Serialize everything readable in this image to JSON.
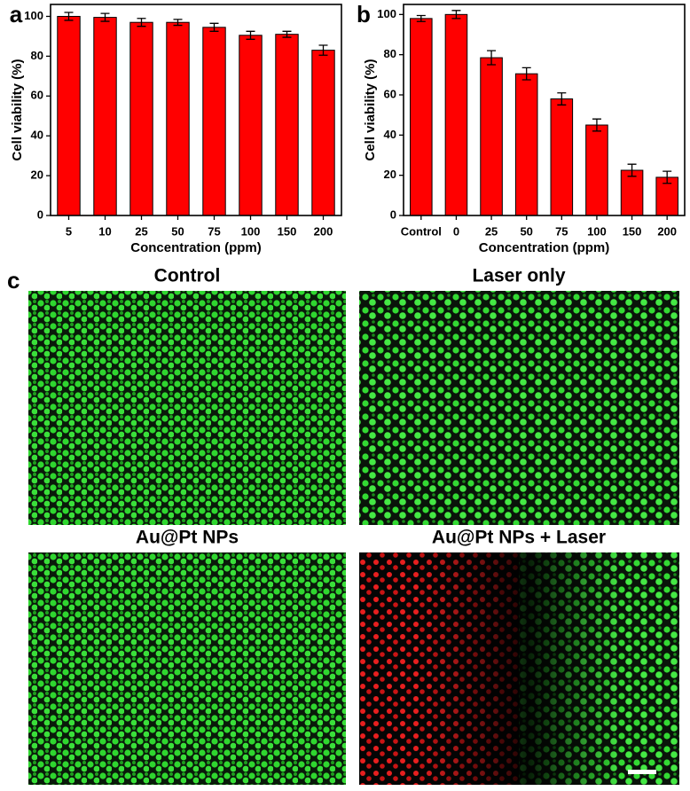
{
  "chart_data": [
    {
      "type": "bar",
      "panel_label": "a",
      "xlabel": "Concentration (ppm)",
      "ylabel": "Cell viability (%)",
      "categories": [
        "5",
        "10",
        "25",
        "50",
        "75",
        "100",
        "150",
        "200"
      ],
      "values": [
        100,
        99.5,
        97,
        97,
        94.5,
        90.5,
        91,
        83
      ],
      "errors": [
        2,
        2,
        2,
        1.5,
        2,
        2,
        1.5,
        2.5
      ],
      "color": "#ff0000",
      "ylim": [
        0,
        106
      ],
      "yticks": [
        0,
        20,
        40,
        60,
        80,
        100
      ]
    },
    {
      "type": "bar",
      "panel_label": "b",
      "xlabel": "Concentration (ppm)",
      "ylabel": "Cell viability (%)",
      "categories": [
        "Control",
        "0",
        "25",
        "50",
        "75",
        "100",
        "150",
        "200"
      ],
      "values": [
        98,
        100,
        78.5,
        70.5,
        58,
        45,
        22.5,
        19
      ],
      "errors": [
        1.5,
        2,
        3.5,
        3,
        3,
        3,
        3,
        3
      ],
      "color": "#ff0000",
      "ylim": [
        0,
        105
      ],
      "yticks": [
        0,
        20,
        40,
        60,
        80,
        100
      ]
    }
  ],
  "images": {
    "panel_label": "c",
    "titles": [
      "Control",
      "Laser only",
      "Au@Pt NPs",
      "Au@Pt NPs + Laser"
    ]
  }
}
